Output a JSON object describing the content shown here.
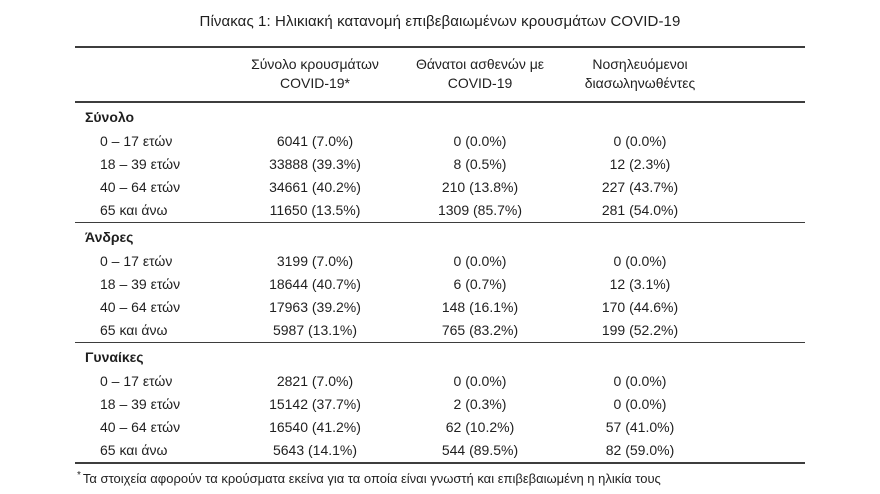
{
  "chart_data": {
    "type": "table",
    "title": "Πίνακας 1: Ηλικιακή κατανομή επιβεβαιωμένων κρουσμάτων COVID-19",
    "columns": [
      {
        "line1": "Σύνολο κρουσμάτων",
        "line2": "COVID-19*"
      },
      {
        "line1": "Θάνατοι ασθενών με",
        "line2": "COVID-19"
      },
      {
        "line1": "Νοσηλευόμενοι",
        "line2": "διασωληνωθέντες"
      }
    ],
    "sections": [
      {
        "label": "Σύνολο",
        "rows": [
          {
            "age": "0 – 17 ετών",
            "cases": "6041 (7.0%)",
            "deaths": "0 (0.0%)",
            "intubated": "0 (0.0%)"
          },
          {
            "age": "18 – 39 ετών",
            "cases": "33888 (39.3%)",
            "deaths": "8 (0.5%)",
            "intubated": "12 (2.3%)"
          },
          {
            "age": "40 – 64 ετών",
            "cases": "34661 (40.2%)",
            "deaths": "210 (13.8%)",
            "intubated": "227 (43.7%)"
          },
          {
            "age": "65 και άνω",
            "cases": "11650 (13.5%)",
            "deaths": "1309 (85.7%)",
            "intubated": "281 (54.0%)"
          }
        ]
      },
      {
        "label": "Άνδρες",
        "rows": [
          {
            "age": "0 – 17 ετών",
            "cases": "3199 (7.0%)",
            "deaths": "0 (0.0%)",
            "intubated": "0 (0.0%)"
          },
          {
            "age": "18 – 39 ετών",
            "cases": "18644 (40.7%)",
            "deaths": "6 (0.7%)",
            "intubated": "12 (3.1%)"
          },
          {
            "age": "40 – 64 ετών",
            "cases": "17963 (39.2%)",
            "deaths": "148 (16.1%)",
            "intubated": "170 (44.6%)"
          },
          {
            "age": "65 και άνω",
            "cases": "5987 (13.1%)",
            "deaths": "765 (83.2%)",
            "intubated": "199 (52.2%)"
          }
        ]
      },
      {
        "label": "Γυναίκες",
        "rows": [
          {
            "age": "0 – 17 ετών",
            "cases": "2821 (7.0%)",
            "deaths": "0 (0.0%)",
            "intubated": "0 (0.0%)"
          },
          {
            "age": "18 – 39 ετών",
            "cases": "15142 (37.7%)",
            "deaths": "2 (0.3%)",
            "intubated": "0 (0.0%)"
          },
          {
            "age": "40 – 64 ετών",
            "cases": "16540 (41.2%)",
            "deaths": "62 (10.2%)",
            "intubated": "57 (41.0%)"
          },
          {
            "age": "65 και άνω",
            "cases": "5643 (14.1%)",
            "deaths": "544 (89.5%)",
            "intubated": "82 (59.0%)"
          }
        ]
      }
    ],
    "footnote": {
      "marker": "*",
      "text": "Τα στοιχεία αφορούν τα κρούσματα εκείνα για τα οποία είναι γνωστή και επιβεβαιωμένη η ηλικία τους"
    }
  }
}
